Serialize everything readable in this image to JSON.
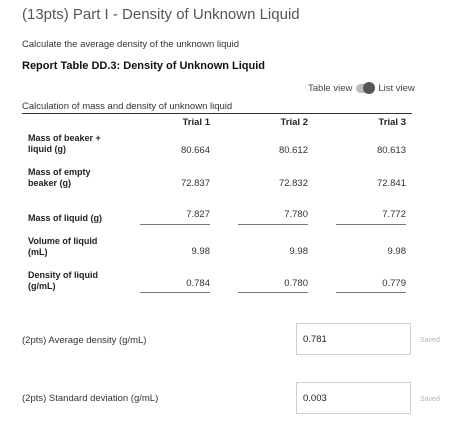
{
  "title": "(13pts) Part I - Density of Unknown Liquid",
  "instruction": "Calculate the average density of the unknown liquid",
  "report_table_title": "Report Table DD.3: Density of Unknown Liquid",
  "view_toggle": {
    "table_label": "Table view",
    "list_label": "List view"
  },
  "table": {
    "caption": "Calculation of mass and density of unknown liquid",
    "columns": [
      "Trial 1",
      "Trial 2",
      "Trial 3"
    ],
    "rows": [
      {
        "label_line1": "Mass of beaker +",
        "label_line2": "liquid (g)",
        "values": [
          "80.664",
          "80.612",
          "80.613"
        ]
      },
      {
        "label_line1": "Mass of empty",
        "label_line2": "beaker (g)",
        "values": [
          "72.837",
          "72.832",
          "72.841"
        ]
      },
      {
        "label_line1": "Mass of liquid (g)",
        "label_line2": "",
        "values": [
          "7.827",
          "7.780",
          "7.772"
        ]
      },
      {
        "label_line1": "Volume of liquid",
        "label_line2": "(mL)",
        "values": [
          "9.98",
          "9.98",
          "9.98"
        ]
      },
      {
        "label_line1": "Density of liquid",
        "label_line2": "(g/mL)",
        "values": [
          "0.784",
          "0.780",
          "0.779"
        ]
      }
    ]
  },
  "average": {
    "label": "(2pts)  Average density (g/mL)",
    "value": "0.781",
    "status": "Saved"
  },
  "stdev": {
    "label": "(2pts)  Standard deviation (g/mL)",
    "value": "0.003",
    "status": "Saved"
  }
}
